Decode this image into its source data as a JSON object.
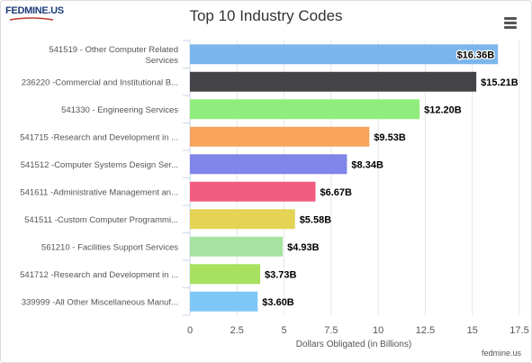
{
  "logo": {
    "text": "FEDMINE.US"
  },
  "menu": {
    "icon": "hamburger-menu-icon"
  },
  "credit": "fedmine.us",
  "chart_data": {
    "type": "bar",
    "orientation": "horizontal",
    "title": "Top 10 Industry Codes",
    "xlabel": "Dollars Obligated (in Billions)",
    "ylabel": "",
    "xlim": [
      0,
      17.5
    ],
    "xticks": [
      "0",
      "2.5",
      "5",
      "7.5",
      "10",
      "12.5",
      "15",
      "17.5"
    ],
    "xtick_values": [
      0,
      2.5,
      5,
      7.5,
      10,
      12.5,
      15,
      17.5
    ],
    "grid": true,
    "categories": [
      "541519 - Other Computer Related Services",
      "236220 -Commercial and Institutional B...",
      "541330 - Engineering Services",
      "541715 -Research and Development in ...",
      "541512 -Computer Systems Design Ser...",
      "541611 -Administrative Management an...",
      "541511 -Custom Computer Programmi...",
      "561210 - Facilities Support Services",
      "541712 -Research and Development in ...",
      "339999 -All Other Miscellaneous Manuf..."
    ],
    "category_lines": [
      [
        "541519 - Other Computer Related",
        "Services"
      ],
      [
        "236220 -Commercial and Institutional B..."
      ],
      [
        "541330 - Engineering Services"
      ],
      [
        "541715 -Research and Development in ..."
      ],
      [
        "541512 -Computer Systems Design Ser..."
      ],
      [
        "541611 -Administrative Management an..."
      ],
      [
        "541511 -Custom Computer Programmi..."
      ],
      [
        "561210 - Facilities Support Services"
      ],
      [
        "541712 -Research and Development in ..."
      ],
      [
        "339999 -All Other Miscellaneous Manuf..."
      ]
    ],
    "values": [
      16.36,
      15.21,
      12.2,
      9.53,
      8.34,
      6.67,
      5.58,
      4.93,
      3.73,
      3.6
    ],
    "data_labels": [
      "$16.36B",
      "$15.21B",
      "$12.20B",
      "$9.53B",
      "$8.34B",
      "$6.67B",
      "$5.58B",
      "$4.93B",
      "$3.73B",
      "$3.60B"
    ],
    "colors": [
      "#7cb5ec",
      "#434348",
      "#90ed7d",
      "#f7a35c",
      "#8085e9",
      "#f15c80",
      "#e4d354",
      "#a6e3a1",
      "#a8e05f",
      "#7ec8f7"
    ]
  }
}
